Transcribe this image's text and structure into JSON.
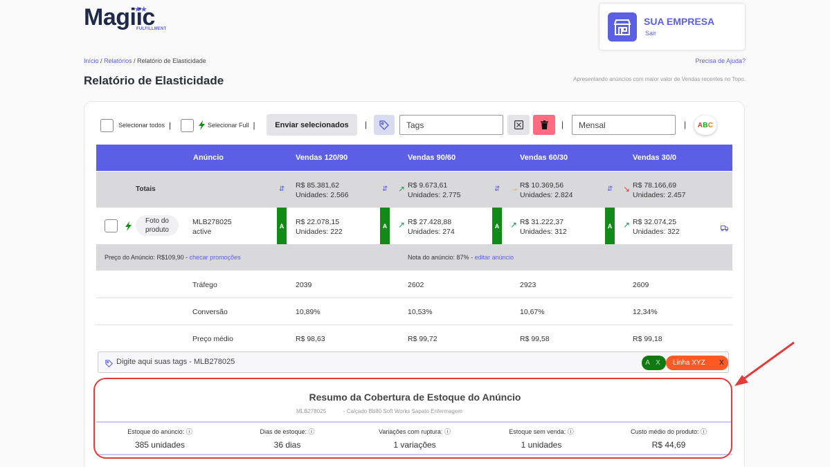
{
  "brand": {
    "name": "Magiic",
    "sub": "FULFILLMENT",
    "stars": "★★"
  },
  "company": {
    "name": "SUA EMPRESA",
    "logout": "Sair"
  },
  "breadcrumb": {
    "home": "Início",
    "reports": "Relatórios",
    "current": "Relatório de Elasticidade",
    "sep": "/"
  },
  "help": "Precisa de Ajuda?",
  "page": {
    "title": "Relatório de Elasticidade",
    "subtitle": "Apresentando anúncios com maior valor de Vendas recentes no Topo."
  },
  "toolbar": {
    "select_all": "Selecionar todos",
    "select_full": "Selecionar Full",
    "sep": "|",
    "send": "Enviar selecionados",
    "tags_value": "Tags",
    "period_value": "Mensal",
    "abc": {
      "a": "A",
      "b": "B",
      "c": "C",
      "colors": {
        "a": "#e53a3a",
        "b": "#1a9a1a",
        "c": "#e07a10"
      }
    }
  },
  "table": {
    "headers": [
      "Anúncio",
      "Vendas 120/90",
      "Vendas 90/60",
      "Vendas 60/30",
      "Vendas 30/0"
    ],
    "totals": {
      "label": "Totais",
      "cells": [
        {
          "value": "R$  85.381,62",
          "units": "Unidades: 2.566",
          "trend": ""
        },
        {
          "value": "R$    9.673,61",
          "units": "Unidades: 2.775",
          "trend": "↗"
        },
        {
          "value": "R$  10.369,56",
          "units": "Unidades: 2.824",
          "trend": "→"
        },
        {
          "value": "R$  78.166,69",
          "units": "Unidades: 2.457",
          "trend": "↘"
        }
      ]
    },
    "product": {
      "photo": "Foto do produto",
      "id": "MLB278025",
      "status": "active",
      "grade": "A",
      "cells": [
        {
          "value": "R$ 22.078,15",
          "units": "Unidades: 222",
          "trend": ""
        },
        {
          "value": "R$ 27.428,88",
          "units": "Unidades: 274",
          "trend": "↗"
        },
        {
          "value": "R$ 31.222,37",
          "units": "Unidades: 312",
          "trend": "↗"
        },
        {
          "value": "R$ 32.074,25",
          "units": "Unidades: 322",
          "trend": "↗"
        }
      ]
    },
    "info": {
      "price_label": "Preço do Anúncio: R$109,90 - ",
      "price_link": "checar promoções",
      "score_label": "Nota do anúncio: 87% - ",
      "score_link": "editar anúncio"
    },
    "metrics": [
      {
        "label": "Tráfego",
        "values": [
          "2039",
          "2602",
          "2923",
          "2609"
        ]
      },
      {
        "label": "Conversão",
        "values": [
          "10,89%",
          "10,53%",
          "10,67%",
          "12,34%"
        ]
      },
      {
        "label": "Preço médio",
        "values": [
          "R$ 98,63",
          "R$ 99,72",
          "R$ 99,58",
          "R$ 99,18"
        ]
      }
    ]
  },
  "tagbar": {
    "placeholder": "Digite aqui suas tags - MLB278025",
    "chip_a": "A X",
    "chip_b": "Linha XYZ",
    "chip_b_close": "X"
  },
  "summary": {
    "title": "Resumo da Cobertura de Estoque do Anúncio",
    "id": "MLB278025",
    "product": "- Calçado Bb80 Soft Works Sapato Enfermagem",
    "items": [
      {
        "label": "Estoque do anúncio:",
        "value": "385 unidades"
      },
      {
        "label": "Dias de estoque:",
        "value": "36 dias"
      },
      {
        "label": "Variações com ruptura:",
        "value": "1 variações"
      },
      {
        "label": "Estoque sem venda:",
        "value": "1 unidades"
      },
      {
        "label": "Custo médio do produto:",
        "value": "R$ 44,69"
      }
    ]
  },
  "colors": {
    "accent": "#5b5fe6",
    "grade": "#118a18",
    "highlight": "#e53a3a",
    "trend_up": "#1a9a5a",
    "trend_flat": "#f0a020",
    "trend_down": "#e53a3a"
  },
  "icons": [
    "store-icon",
    "bolt-icon",
    "tag-icon",
    "clear-icon",
    "trash-icon",
    "sort-icon",
    "truck-icon",
    "info-icon"
  ]
}
